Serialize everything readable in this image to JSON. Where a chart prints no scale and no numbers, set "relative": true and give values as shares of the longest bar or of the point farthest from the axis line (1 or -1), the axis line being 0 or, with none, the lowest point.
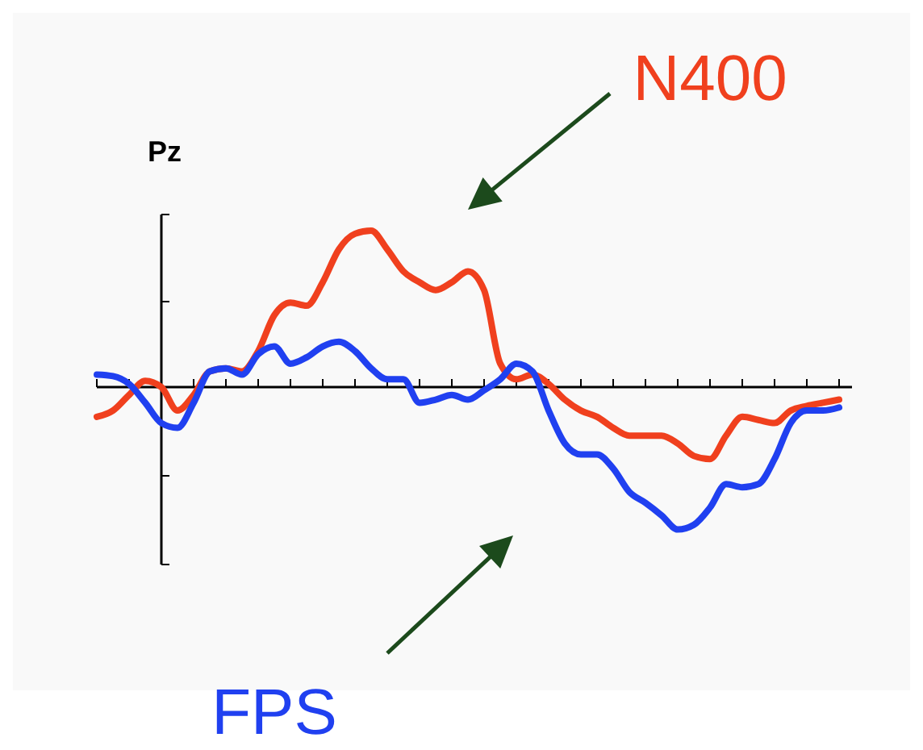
{
  "chart_data": {
    "type": "line",
    "title": "Pz",
    "relative": true,
    "legend": false,
    "grid": false,
    "marker": "none",
    "line_style": "solid",
    "categories": [
      null,
      null,
      null,
      null,
      null,
      null,
      null,
      null,
      null,
      null,
      null,
      null,
      null,
      null,
      null,
      null,
      null,
      null,
      null,
      null,
      null,
      null,
      null,
      null,
      null,
      null,
      null,
      null,
      null,
      null,
      null,
      null,
      null,
      null,
      null,
      null,
      null,
      null,
      null,
      null,
      null,
      null,
      null,
      null,
      null,
      null,
      null
    ],
    "series": [
      {
        "name": "N400",
        "color": "#f0401e",
        "values": [
          -0.19,
          -0.15,
          -0.05,
          0.04,
          0,
          -0.15,
          -0.05,
          0.1,
          0.12,
          0.1,
          0.23,
          0.46,
          0.54,
          0.52,
          0.67,
          0.88,
          0.98,
          1,
          0.88,
          0.74,
          0.67,
          0.62,
          0.67,
          0.74,
          0.62,
          0.15,
          0.05,
          0.08,
          0.02,
          -0.08,
          -0.15,
          -0.19,
          -0.26,
          -0.31,
          -0.31,
          -0.31,
          -0.36,
          -0.44,
          -0.46,
          -0.31,
          -0.19,
          -0.21,
          -0.23,
          -0.15,
          -0.12,
          -0.1,
          -0.08
        ]
      },
      {
        "name": "FPS",
        "color": "#2040f0",
        "values": [
          0.08,
          0.07,
          0.02,
          -0.1,
          -0.23,
          -0.26,
          -0.1,
          0.1,
          0.12,
          0.08,
          0.21,
          0.26,
          0.15,
          0.19,
          0.26,
          0.29,
          0.23,
          0.12,
          0.05,
          0.05,
          -0.1,
          -0.08,
          -0.05,
          -0.08,
          -0.02,
          0.05,
          0.15,
          0.1,
          -0.15,
          -0.36,
          -0.43,
          -0.43,
          -0.52,
          -0.67,
          -0.74,
          -0.82,
          -0.91,
          -0.88,
          -0.77,
          -0.62,
          -0.64,
          -0.62,
          -0.46,
          -0.23,
          -0.15,
          -0.15,
          -0.13
        ]
      }
    ]
  }
}
